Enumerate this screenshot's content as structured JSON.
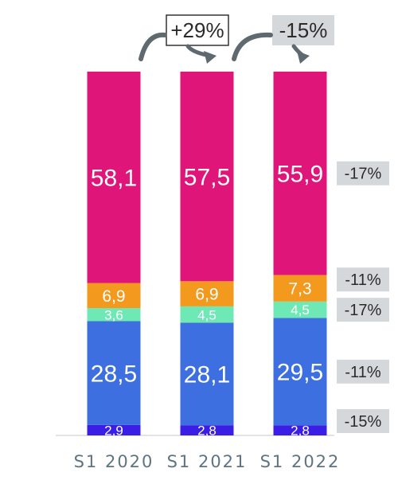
{
  "chart_data": {
    "type": "bar",
    "stacked": true,
    "categories": [
      "S1 2020",
      "S1 2021",
      "S1 2022"
    ],
    "series": [
      {
        "values": [
          2.9,
          2.8,
          2.8
        ],
        "labels": [
          "2,9",
          "2,8",
          "2,8"
        ],
        "color": "#3a1ee6"
      },
      {
        "values": [
          28.5,
          28.1,
          29.5
        ],
        "labels": [
          "28,5",
          "28,1",
          "29,5"
        ],
        "color": "#3d6fe0"
      },
      {
        "values": [
          3.6,
          4.5,
          4.5
        ],
        "labels": [
          "3,6",
          "4,5",
          "4,5"
        ],
        "color": "#6ee8b4"
      },
      {
        "values": [
          6.9,
          6.9,
          7.3
        ],
        "labels": [
          "6,9",
          "6,9",
          "7,3"
        ],
        "color": "#f39a1e"
      },
      {
        "values": [
          58.1,
          57.5,
          55.9
        ],
        "labels": [
          "58,1",
          "57,5",
          "55,9"
        ],
        "color": "#e0157a"
      }
    ],
    "segment_changes": [
      "-15%",
      "-11%",
      "-17%",
      "-11%",
      "-17%"
    ],
    "period_changes": [
      {
        "text": "+29%",
        "style": "outlined"
      },
      {
        "text": "-15%",
        "style": "shaded"
      }
    ],
    "grid": false,
    "legend": "none"
  }
}
